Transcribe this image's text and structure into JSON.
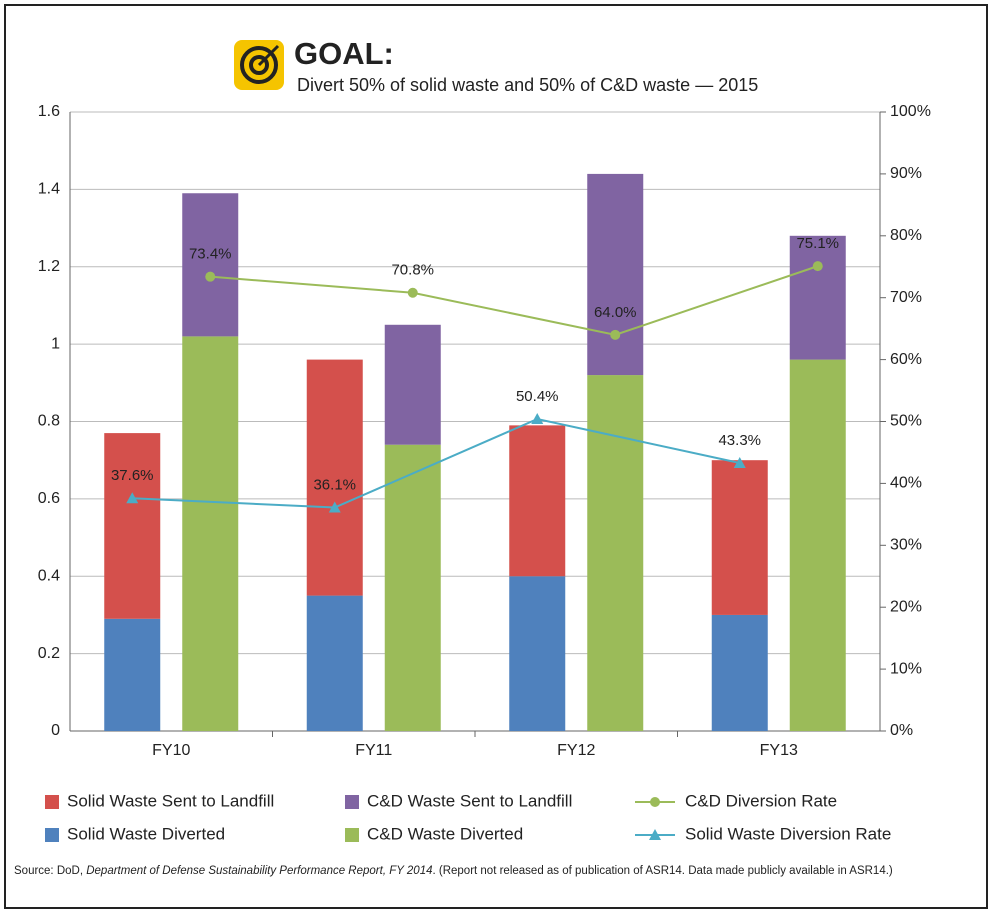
{
  "chart_data": {
    "type": "bar",
    "title": "GOAL:",
    "subtitle": "Divert 50% of solid waste and 50% of C&D waste — 2015",
    "categories": [
      "FY10",
      "FY11",
      "FY12",
      "FY13"
    ],
    "series": [
      {
        "name": "Solid Waste Sent to Landfill",
        "type": "bar",
        "stack": "solid",
        "color": "#d4504c",
        "values": [
          0.48,
          0.61,
          0.39,
          0.4
        ]
      },
      {
        "name": "C&D Waste Sent to Landfill",
        "type": "bar",
        "stack": "cd",
        "color": "#8064a2",
        "values": [
          0.37,
          0.31,
          0.52,
          0.32
        ]
      },
      {
        "name": "C&D Diversion Rate",
        "type": "line",
        "axis": "y2",
        "stack": "cd",
        "color": "#9bbb59",
        "values": [
          73.4,
          70.8,
          64.0,
          75.1
        ],
        "value_labels": [
          "73.4%",
          "70.8%",
          "64.0%",
          "75.1%"
        ]
      },
      {
        "name": "Solid Waste Diverted",
        "type": "bar",
        "stack": "solid",
        "color": "#4f81bd",
        "values": [
          0.29,
          0.35,
          0.4,
          0.3
        ]
      },
      {
        "name": "C&D Waste Diverted",
        "type": "bar",
        "stack": "cd",
        "color": "#9bbb59",
        "values": [
          1.02,
          0.74,
          0.92,
          0.96
        ]
      },
      {
        "name": "Solid Waste Diversion Rate",
        "type": "line",
        "axis": "y2",
        "stack": "solid",
        "color": "#4bacc6",
        "values": [
          37.6,
          36.1,
          50.4,
          43.3
        ],
        "value_labels": [
          "37.6%",
          "36.1%",
          "50.4%",
          "43.3%"
        ]
      }
    ],
    "ylim": [
      0,
      1.6
    ],
    "yticks": [
      0,
      0.2,
      0.4,
      0.6,
      0.8,
      1,
      1.2,
      1.4,
      1.6
    ],
    "y2lim": [
      0,
      100
    ],
    "y2ticks": [
      {
        "value": 0,
        "label": "0%"
      },
      {
        "value": 10,
        "label": "10%"
      },
      {
        "value": 20,
        "label": "20%"
      },
      {
        "value": 30,
        "label": "30%"
      },
      {
        "value": 40,
        "label": "40%"
      },
      {
        "value": 50,
        "label": "50%"
      },
      {
        "value": 60,
        "label": "60%"
      },
      {
        "value": 70,
        "label": "70%"
      },
      {
        "value": 80,
        "label": "80%"
      },
      {
        "value": 90,
        "label": "90%"
      },
      {
        "value": 100,
        "label": "100%"
      }
    ],
    "grid": true,
    "legend": "bottom",
    "source": [
      "Source: DoD, ",
      "Department of Defense Sustainability Performance Report, FY 2014",
      ". (Report not released as of publication of ASR14. Data made publicly available in ASR14.)"
    ]
  }
}
